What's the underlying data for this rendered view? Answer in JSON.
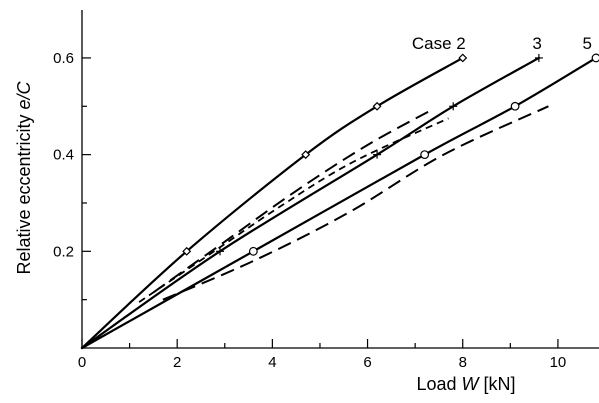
{
  "chart_data": {
    "type": "line",
    "xlabel_text": "Load ",
    "xlabel_symbol": "W",
    "xlabel_unit": " [kN]",
    "ylabel_text": "Relative eccentricity ",
    "ylabel_symbol": "e/C",
    "xlim": [
      0,
      10.8
    ],
    "ylim": [
      0,
      0.7
    ],
    "x_ticks_major": [
      0,
      2,
      4,
      6,
      8,
      10
    ],
    "x_tick_labels": [
      "0",
      "2",
      "4",
      "6",
      "8",
      "10"
    ],
    "x_ticks_minor": [
      1,
      3,
      5,
      7,
      9
    ],
    "y_ticks_major": [
      0.2,
      0.4,
      0.6
    ],
    "y_tick_labels": [
      "0.2",
      "0.4",
      "0.6"
    ],
    "y_ticks_minor": [
      0.1,
      0.3,
      0.5
    ],
    "series": [
      {
        "name": "Case 2",
        "style": "solid",
        "marker": "diamond",
        "x": [
          0,
          2.2,
          4.7,
          6.2,
          8.0
        ],
        "y": [
          0,
          0.2,
          0.4,
          0.5,
          0.6
        ],
        "label": "Case 2"
      },
      {
        "name": "3",
        "style": "solid",
        "marker": "plus",
        "x": [
          0,
          2.9,
          6.2,
          7.8,
          9.6
        ],
        "y": [
          0,
          0.2,
          0.4,
          0.5,
          0.6
        ],
        "label": "3"
      },
      {
        "name": "5",
        "style": "solid",
        "marker": "circle",
        "x": [
          0,
          3.6,
          7.2,
          9.1,
          10.8
        ],
        "y": [
          0,
          0.2,
          0.4,
          0.5,
          0.6
        ],
        "label": "5"
      }
    ],
    "dashed_series": [
      {
        "style": "long-dash",
        "x": [
          1.5,
          3.0,
          4.5,
          6.0,
          7.3
        ],
        "y": [
          0.115,
          0.22,
          0.325,
          0.42,
          0.49
        ]
      },
      {
        "style": "short-dash",
        "x": [
          1.2,
          2.7,
          4.2,
          5.7,
          7.7
        ],
        "y": [
          0.095,
          0.195,
          0.295,
          0.385,
          0.475
        ]
      },
      {
        "style": "long-dash",
        "x": [
          1.7,
          3.6,
          5.6,
          7.6,
          9.8
        ],
        "y": [
          0.1,
          0.18,
          0.28,
          0.4,
          0.5
        ]
      }
    ]
  }
}
